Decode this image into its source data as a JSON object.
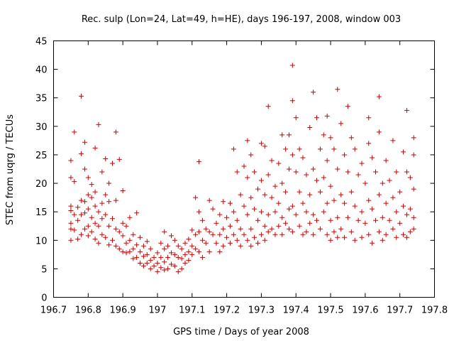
{
  "chart_data": {
    "type": "scatter",
    "title": "Rec. sulp (Lon=24, Lat=49, h=HE), days 196-197, 2008, window 003",
    "xlabel": "GPS time / Days of year 2008",
    "ylabel": "STEC from uqrg / TECUs",
    "xlim": [
      196.7,
      197.8
    ],
    "ylim": [
      0,
      45
    ],
    "xticks": [
      196.7,
      196.8,
      196.9,
      197,
      197.1,
      197.2,
      197.3,
      197.4,
      197.5,
      197.6,
      197.7,
      197.8
    ],
    "xtick_labels": [
      "196.7",
      "196.8",
      "196.9",
      "197",
      "197.1",
      "197.2",
      "197.3",
      "197.4",
      "197.5",
      "197.6",
      "197.7",
      "197.8"
    ],
    "yticks": [
      0,
      5,
      10,
      15,
      20,
      25,
      30,
      35,
      40,
      45
    ],
    "ytick_labels": [
      "0",
      "5",
      "10",
      "15",
      "20",
      "25",
      "30",
      "35",
      "40",
      "45"
    ],
    "grid": false,
    "marker": "+",
    "color": "#cc0000",
    "points": [
      [
        196.75,
        24.0
      ],
      [
        196.76,
        29.0
      ],
      [
        196.78,
        35.3
      ],
      [
        196.79,
        27.2
      ],
      [
        196.82,
        26.2
      ],
      [
        196.83,
        30.3
      ],
      [
        196.85,
        24.3
      ],
      [
        196.88,
        29.0
      ],
      [
        196.89,
        24.2
      ],
      [
        196.87,
        23.5
      ],
      [
        196.75,
        21.0
      ],
      [
        196.76,
        20.3
      ],
      [
        196.78,
        25.2
      ],
      [
        196.79,
        22.5
      ],
      [
        196.8,
        21.0
      ],
      [
        196.81,
        19.8
      ],
      [
        196.82,
        18.5
      ],
      [
        196.84,
        22.0
      ],
      [
        196.86,
        20.0
      ],
      [
        196.9,
        18.7
      ],
      [
        196.75,
        16.0
      ],
      [
        196.75,
        15.2
      ],
      [
        196.75,
        13.0
      ],
      [
        196.75,
        12.0
      ],
      [
        196.75,
        10.0
      ],
      [
        196.76,
        14.5
      ],
      [
        196.76,
        11.8
      ],
      [
        196.77,
        15.8
      ],
      [
        196.77,
        13.5
      ],
      [
        196.77,
        10.2
      ],
      [
        196.78,
        17.0
      ],
      [
        196.78,
        14.5
      ],
      [
        196.78,
        11.0
      ],
      [
        196.79,
        16.8
      ],
      [
        196.79,
        14.8
      ],
      [
        196.79,
        12.0
      ],
      [
        196.8,
        18.0
      ],
      [
        196.8,
        15.5
      ],
      [
        196.8,
        12.5
      ],
      [
        196.8,
        10.8
      ],
      [
        196.81,
        17.5
      ],
      [
        196.81,
        14.0
      ],
      [
        196.81,
        11.5
      ],
      [
        196.82,
        16.0
      ],
      [
        196.82,
        13.0
      ],
      [
        196.82,
        10.2
      ],
      [
        196.83,
        15.0
      ],
      [
        196.83,
        12.5
      ],
      [
        196.83,
        9.5
      ],
      [
        196.84,
        16.5
      ],
      [
        196.84,
        13.8
      ],
      [
        196.84,
        11.0
      ],
      [
        196.85,
        18.0
      ],
      [
        196.85,
        14.5
      ],
      [
        196.85,
        10.5
      ],
      [
        196.86,
        16.8
      ],
      [
        196.86,
        12.5
      ],
      [
        196.86,
        9.2
      ],
      [
        196.87,
        13.8
      ],
      [
        196.87,
        10.0
      ],
      [
        196.88,
        17.0
      ],
      [
        196.88,
        12.0
      ],
      [
        196.88,
        9.0
      ],
      [
        196.89,
        11.5
      ],
      [
        196.89,
        8.5
      ],
      [
        196.9,
        13.0
      ],
      [
        196.9,
        10.8
      ],
      [
        196.9,
        8.0
      ],
      [
        196.91,
        12.5
      ],
      [
        196.91,
        9.5
      ],
      [
        196.91,
        7.8
      ],
      [
        196.92,
        14.0
      ],
      [
        196.92,
        10.0
      ],
      [
        196.92,
        8.0
      ],
      [
        196.93,
        11.0
      ],
      [
        196.93,
        8.5
      ],
      [
        196.93,
        6.8
      ],
      [
        196.94,
        14.8
      ],
      [
        196.94,
        9.2
      ],
      [
        196.94,
        7.0
      ],
      [
        196.95,
        10.5
      ],
      [
        196.95,
        8.0
      ],
      [
        196.95,
        6.0
      ],
      [
        196.96,
        9.0
      ],
      [
        196.96,
        7.2
      ],
      [
        196.96,
        5.5
      ],
      [
        196.97,
        9.8
      ],
      [
        196.97,
        7.5
      ],
      [
        196.97,
        6.0
      ],
      [
        196.98,
        8.5
      ],
      [
        196.98,
        6.5
      ],
      [
        196.98,
        5.0
      ],
      [
        196.99,
        7.0
      ],
      [
        196.99,
        5.5
      ],
      [
        197.0,
        7.8
      ],
      [
        197.0,
        6.0
      ],
      [
        197.0,
        4.5
      ],
      [
        197.01,
        9.5
      ],
      [
        197.01,
        7.0
      ],
      [
        197.01,
        5.2
      ],
      [
        197.02,
        11.5
      ],
      [
        197.02,
        8.5
      ],
      [
        197.02,
        6.2
      ],
      [
        197.02,
        4.8
      ],
      [
        197.03,
        9.0
      ],
      [
        197.03,
        7.0
      ],
      [
        197.03,
        5.0
      ],
      [
        197.04,
        10.8
      ],
      [
        197.04,
        7.8
      ],
      [
        197.04,
        5.8
      ],
      [
        197.05,
        10.0
      ],
      [
        197.05,
        7.5
      ],
      [
        197.05,
        5.5
      ],
      [
        197.06,
        9.0
      ],
      [
        197.06,
        7.0
      ],
      [
        197.06,
        4.5
      ],
      [
        197.07,
        8.5
      ],
      [
        197.07,
        6.8
      ],
      [
        197.07,
        5.0
      ],
      [
        197.08,
        9.5
      ],
      [
        197.08,
        7.5
      ],
      [
        197.08,
        6.0
      ],
      [
        197.09,
        10.2
      ],
      [
        197.09,
        8.0
      ],
      [
        197.09,
        6.5
      ],
      [
        197.1,
        11.8
      ],
      [
        197.1,
        9.0
      ],
      [
        197.1,
        7.5
      ],
      [
        197.11,
        17.5
      ],
      [
        197.11,
        11.0
      ],
      [
        197.11,
        8.5
      ],
      [
        197.12,
        23.8
      ],
      [
        197.12,
        15.0
      ],
      [
        197.12,
        11.5
      ],
      [
        197.12,
        8.0
      ],
      [
        197.13,
        13.5
      ],
      [
        197.13,
        10.0
      ],
      [
        197.13,
        7.0
      ],
      [
        197.14,
        12.0
      ],
      [
        197.14,
        9.5
      ],
      [
        197.15,
        17.0
      ],
      [
        197.15,
        11.5
      ],
      [
        197.15,
        8.0
      ],
      [
        197.16,
        15.5
      ],
      [
        197.16,
        11.0
      ],
      [
        197.17,
        13.0
      ],
      [
        197.17,
        9.5
      ],
      [
        197.18,
        14.5
      ],
      [
        197.18,
        11.0
      ],
      [
        197.18,
        8.0
      ],
      [
        197.19,
        16.8
      ],
      [
        197.19,
        12.0
      ],
      [
        197.19,
        9.0
      ],
      [
        197.2,
        14.0
      ],
      [
        197.2,
        10.5
      ],
      [
        197.21,
        16.5
      ],
      [
        197.21,
        12.5
      ],
      [
        197.21,
        9.5
      ],
      [
        197.22,
        26.0
      ],
      [
        197.22,
        15.0
      ],
      [
        197.22,
        11.0
      ],
      [
        197.23,
        22.0
      ],
      [
        197.23,
        13.5
      ],
      [
        197.23,
        10.0
      ],
      [
        197.24,
        18.0
      ],
      [
        197.24,
        12.0
      ],
      [
        197.24,
        9.0
      ],
      [
        197.25,
        23.0
      ],
      [
        197.25,
        16.0
      ],
      [
        197.25,
        11.0
      ],
      [
        197.26,
        27.5
      ],
      [
        197.26,
        21.0
      ],
      [
        197.26,
        14.5
      ],
      [
        197.26,
        10.0
      ],
      [
        197.27,
        25.0
      ],
      [
        197.27,
        17.5
      ],
      [
        197.27,
        12.0
      ],
      [
        197.27,
        9.0
      ],
      [
        197.28,
        22.0
      ],
      [
        197.28,
        15.5
      ],
      [
        197.28,
        10.5
      ],
      [
        197.29,
        19.0
      ],
      [
        197.29,
        13.5
      ],
      [
        197.29,
        9.5
      ],
      [
        197.3,
        27.0
      ],
      [
        197.3,
        20.5
      ],
      [
        197.3,
        15.0
      ],
      [
        197.3,
        11.0
      ],
      [
        197.31,
        26.5
      ],
      [
        197.31,
        18.0
      ],
      [
        197.31,
        12.5
      ],
      [
        197.31,
        10.0
      ],
      [
        197.32,
        33.5
      ],
      [
        197.32,
        21.5
      ],
      [
        197.32,
        14.5
      ],
      [
        197.32,
        11.5
      ],
      [
        197.33,
        24.0
      ],
      [
        197.33,
        17.5
      ],
      [
        197.33,
        12.0
      ],
      [
        197.34,
        19.5
      ],
      [
        197.34,
        15.0
      ],
      [
        197.34,
        11.0
      ],
      [
        197.35,
        23.5
      ],
      [
        197.35,
        16.5
      ],
      [
        197.35,
        12.5
      ],
      [
        197.36,
        28.5
      ],
      [
        197.36,
        20.0
      ],
      [
        197.36,
        14.0
      ],
      [
        197.36,
        11.0
      ],
      [
        197.37,
        26.0
      ],
      [
        197.37,
        18.5
      ],
      [
        197.37,
        13.0
      ],
      [
        197.38,
        28.5
      ],
      [
        197.38,
        22.5
      ],
      [
        197.38,
        15.5
      ],
      [
        197.38,
        12.0
      ],
      [
        197.39,
        40.7
      ],
      [
        197.39,
        34.5
      ],
      [
        197.39,
        25.0
      ],
      [
        197.39,
        16.0
      ],
      [
        197.39,
        11.5
      ],
      [
        197.4,
        31.5
      ],
      [
        197.4,
        22.0
      ],
      [
        197.4,
        14.5
      ],
      [
        197.41,
        26.0
      ],
      [
        197.41,
        18.5
      ],
      [
        197.41,
        12.5
      ],
      [
        197.42,
        24.5
      ],
      [
        197.42,
        16.5
      ],
      [
        197.42,
        11.0
      ],
      [
        197.43,
        21.5
      ],
      [
        197.43,
        15.0
      ],
      [
        197.43,
        11.5
      ],
      [
        197.44,
        29.8
      ],
      [
        197.44,
        18.0
      ],
      [
        197.44,
        13.0
      ],
      [
        197.45,
        36.0
      ],
      [
        197.45,
        22.5
      ],
      [
        197.45,
        14.5
      ],
      [
        197.45,
        11.0
      ],
      [
        197.46,
        31.5
      ],
      [
        197.46,
        20.5
      ],
      [
        197.46,
        13.5
      ],
      [
        197.47,
        26.0
      ],
      [
        197.47,
        18.5
      ],
      [
        197.47,
        12.0
      ],
      [
        197.48,
        28.5
      ],
      [
        197.48,
        21.0
      ],
      [
        197.48,
        15.0
      ],
      [
        197.49,
        31.8
      ],
      [
        197.49,
        24.0
      ],
      [
        197.49,
        16.5
      ],
      [
        197.49,
        11.0
      ],
      [
        197.5,
        28.0
      ],
      [
        197.5,
        19.5
      ],
      [
        197.5,
        13.5
      ],
      [
        197.5,
        10.0
      ],
      [
        197.51,
        26.0
      ],
      [
        197.51,
        17.0
      ],
      [
        197.51,
        11.5
      ],
      [
        197.52,
        36.5
      ],
      [
        197.52,
        22.5
      ],
      [
        197.52,
        14.0
      ],
      [
        197.52,
        10.5
      ],
      [
        197.53,
        30.5
      ],
      [
        197.53,
        18.0
      ],
      [
        197.53,
        12.0
      ],
      [
        197.54,
        25.0
      ],
      [
        197.54,
        16.5
      ],
      [
        197.54,
        10.5
      ],
      [
        197.55,
        33.5
      ],
      [
        197.55,
        22.0
      ],
      [
        197.55,
        14.0
      ],
      [
        197.56,
        28.0
      ],
      [
        197.56,
        18.5
      ],
      [
        197.56,
        11.5
      ],
      [
        197.57,
        26.0
      ],
      [
        197.57,
        16.0
      ],
      [
        197.57,
        10.0
      ],
      [
        197.58,
        21.5
      ],
      [
        197.58,
        13.5
      ],
      [
        197.59,
        23.5
      ],
      [
        197.59,
        15.0
      ],
      [
        197.59,
        10.5
      ],
      [
        197.6,
        20.0
      ],
      [
        197.6,
        13.0
      ],
      [
        197.61,
        31.5
      ],
      [
        197.61,
        27.0
      ],
      [
        197.61,
        17.0
      ],
      [
        197.61,
        11.0
      ],
      [
        197.62,
        24.5
      ],
      [
        197.62,
        15.5
      ],
      [
        197.62,
        9.5
      ],
      [
        197.63,
        22.0
      ],
      [
        197.63,
        13.5
      ],
      [
        197.64,
        35.2
      ],
      [
        197.64,
        29.0
      ],
      [
        197.64,
        18.0
      ],
      [
        197.64,
        11.5
      ],
      [
        197.65,
        20.0
      ],
      [
        197.65,
        14.0
      ],
      [
        197.65,
        10.0
      ],
      [
        197.66,
        24.0
      ],
      [
        197.66,
        16.5
      ],
      [
        197.66,
        11.0
      ],
      [
        197.67,
        20.5
      ],
      [
        197.67,
        13.5
      ],
      [
        197.68,
        27.5
      ],
      [
        197.68,
        17.5
      ],
      [
        197.68,
        12.0
      ],
      [
        197.69,
        22.0
      ],
      [
        197.69,
        15.0
      ],
      [
        197.69,
        10.5
      ],
      [
        197.7,
        18.5
      ],
      [
        197.7,
        13.0
      ],
      [
        197.71,
        25.5
      ],
      [
        197.71,
        16.0
      ],
      [
        197.71,
        11.0
      ],
      [
        197.72,
        32.8
      ],
      [
        197.72,
        22.0
      ],
      [
        197.72,
        14.5
      ],
      [
        197.72,
        10.5
      ],
      [
        197.73,
        21.0
      ],
      [
        197.73,
        15.5
      ],
      [
        197.73,
        11.5
      ],
      [
        197.74,
        28.0
      ],
      [
        197.74,
        25.0
      ],
      [
        197.74,
        19.0
      ],
      [
        197.74,
        14.0
      ],
      [
        197.74,
        12.0
      ]
    ]
  }
}
